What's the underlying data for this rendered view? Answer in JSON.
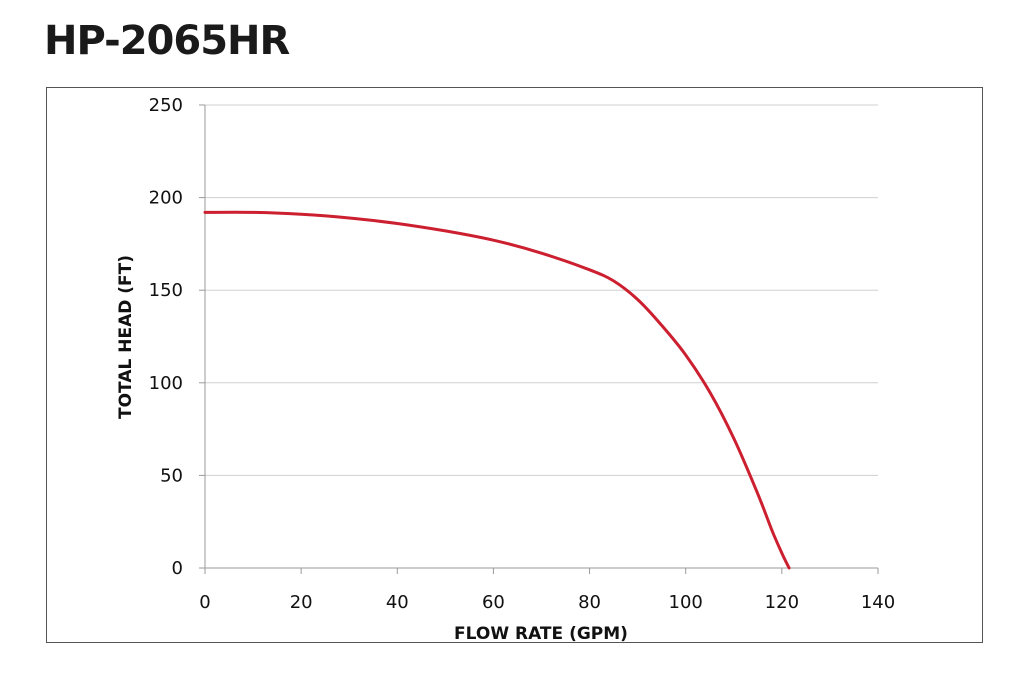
{
  "chart_data": {
    "type": "line",
    "title": "HP-2065HR",
    "xlabel": "FLOW RATE  (GPM)",
    "ylabel": "TOTAL HEAD (FT)",
    "xlim": [
      0,
      140
    ],
    "ylim": [
      0,
      250
    ],
    "x_ticks": [
      0,
      20,
      40,
      60,
      80,
      100,
      120,
      140
    ],
    "y_ticks": [
      0,
      50,
      100,
      150,
      200,
      250
    ],
    "grid": true,
    "line_color": "#cc1f2f",
    "series": [
      {
        "x": [
          0,
          10,
          20,
          30,
          40,
          50,
          60,
          70,
          80,
          85,
          90,
          95,
          100,
          105,
          110,
          115,
          118,
          120,
          121.5
        ],
        "values": [
          192,
          192,
          191,
          189,
          186,
          182,
          177,
          170,
          161,
          155,
          145,
          131,
          115,
          95,
          70,
          40,
          20,
          8,
          0
        ]
      }
    ]
  }
}
